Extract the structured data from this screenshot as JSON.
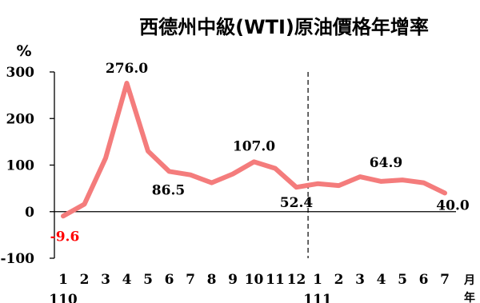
{
  "chart_data": {
    "type": "line",
    "title": "西德州中級(WTI)原油價格年增率",
    "ylabel": "%",
    "ylim": [
      -100,
      300
    ],
    "yticks": [
      300,
      200,
      100,
      0,
      -100
    ],
    "categories": [
      "1",
      "2",
      "3",
      "4",
      "5",
      "6",
      "7",
      "8",
      "9",
      "10",
      "11",
      "12",
      "1",
      "2",
      "3",
      "4",
      "5",
      "6",
      "7"
    ],
    "xunit": "月",
    "year_unit": "年",
    "year_groups": [
      {
        "label": "110",
        "start_index": 0
      },
      {
        "label": "111",
        "start_index": 12
      }
    ],
    "series": [
      {
        "values": [
          -9.6,
          16,
          115,
          276.0,
          130,
          86.5,
          79,
          62,
          81,
          107.0,
          93,
          52.4,
          60,
          56,
          75,
          64.9,
          68,
          62,
          40.0
        ],
        "color": "#f47c7c"
      }
    ],
    "data_labels": [
      {
        "index": 0,
        "text": "-9.6",
        "negative": true
      },
      {
        "index": 3,
        "text": "276.0"
      },
      {
        "index": 5,
        "text": "86.5"
      },
      {
        "index": 9,
        "text": "107.0"
      },
      {
        "index": 11,
        "text": "52.4"
      },
      {
        "index": 15,
        "text": "64.9"
      },
      {
        "index": 18,
        "text": "40.0"
      }
    ],
    "divider_after_index": 11,
    "grid": false
  }
}
